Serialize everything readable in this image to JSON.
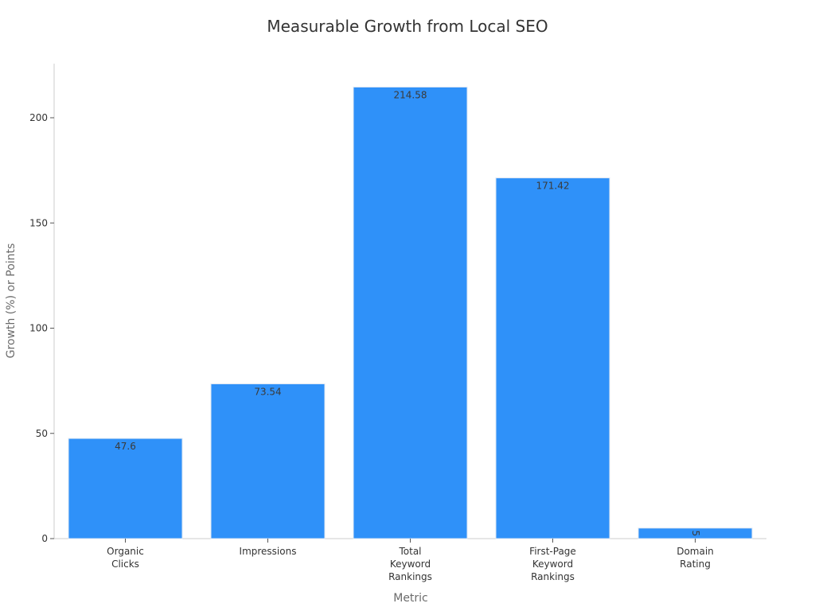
{
  "chart_data": {
    "type": "bar",
    "title": "Measurable Growth from Local SEO",
    "xlabel": "Metric",
    "ylabel": "Growth (%) or Points",
    "categories": [
      [
        "Organic",
        "Clicks"
      ],
      [
        "Impressions"
      ],
      [
        "Total",
        "Keyword",
        "Rankings"
      ],
      [
        "First-Page",
        "Keyword",
        "Rankings"
      ],
      [
        "Domain",
        "Rating"
      ]
    ],
    "values": [
      47.6,
      73.54,
      214.58,
      171.42,
      5
    ],
    "value_labels": [
      "47.6",
      "73.54",
      "214.58",
      "171.42",
      "5"
    ],
    "ylim": [
      0,
      225
    ],
    "yticks": [
      0,
      50,
      100,
      150,
      200
    ],
    "grid": false,
    "bar_color": "#2f91f9"
  }
}
